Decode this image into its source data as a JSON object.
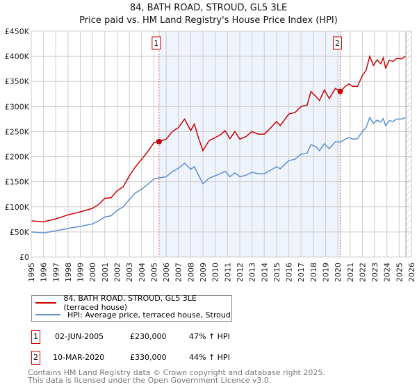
{
  "title": "84, BATH ROAD, STROUD, GL5 3LE",
  "subtitle": "Price paid vs. HM Land Registry's House Price Index (HPI)",
  "chart_data": {
    "type": "line",
    "title": "84, BATH ROAD, STROUD, GL5 3LE",
    "subtitle": "Price paid vs. HM Land Registry's House Price Index (HPI)",
    "xlim": [
      1995,
      2026
    ],
    "ylim": [
      0,
      450000
    ],
    "grid": true,
    "x_ticks": [
      "1995",
      "1996",
      "1997",
      "1998",
      "1999",
      "2000",
      "2001",
      "2002",
      "2003",
      "2004",
      "2005",
      "2006",
      "2007",
      "2008",
      "2009",
      "2010",
      "2011",
      "2012",
      "2013",
      "2014",
      "2015",
      "2016",
      "2017",
      "2018",
      "2019",
      "2020",
      "2021",
      "2022",
      "2023",
      "2024",
      "2025",
      "2026"
    ],
    "y_ticks": [
      {
        "v": 0,
        "label": "£0"
      },
      {
        "v": 50000,
        "label": "£50K"
      },
      {
        "v": 100000,
        "label": "£100K"
      },
      {
        "v": 150000,
        "label": "£150K"
      },
      {
        "v": 200000,
        "label": "£200K"
      },
      {
        "v": 250000,
        "label": "£250K"
      },
      {
        "v": 300000,
        "label": "£300K"
      },
      {
        "v": 350000,
        "label": "£350K"
      },
      {
        "v": 400000,
        "label": "£400K"
      },
      {
        "v": 450000,
        "label": "£450K"
      }
    ],
    "x": [
      1995,
      1996,
      1997,
      1998,
      1999,
      2000,
      2000.5,
      2001,
      2001.5,
      2002,
      2002.5,
      2003,
      2003.5,
      2004,
      2004.5,
      2005,
      2005.5,
      2006,
      2006.5,
      2007,
      2007.5,
      2008,
      2008.3,
      2008.6,
      2009,
      2009.5,
      2010,
      2010.5,
      2010.8,
      2011.2,
      2011.6,
      2012,
      2012.5,
      2013,
      2013.5,
      2014,
      2014.5,
      2015,
      2015.3,
      2016,
      2016.5,
      2017,
      2017.5,
      2017.8,
      2018.2,
      2018.5,
      2018.9,
      2019.3,
      2019.8,
      2020.2,
      2020.6,
      2020.9,
      2021.2,
      2021.6,
      2022,
      2022.3,
      2022.6,
      2022.9,
      2023.2,
      2023.5,
      2023.7,
      2023.9,
      2024.2,
      2024.5,
      2024.8,
      2025.2,
      2025.5
    ],
    "series": [
      {
        "name": "84, BATH ROAD, STROUD, GL5 3LE (terraced house)",
        "color": "#cc0000",
        "values": [
          72,
          70,
          76,
          84,
          90,
          97,
          105,
          117,
          118,
          132,
          140,
          162,
          180,
          195,
          210,
          228,
          231,
          235,
          250,
          258,
          275,
          252,
          265,
          240,
          212,
          232,
          238,
          245,
          252,
          236,
          250,
          235,
          240,
          250,
          245,
          245,
          257,
          270,
          262,
          285,
          288,
          300,
          303,
          330,
          320,
          312,
          333,
          316,
          336,
          330,
          340,
          345,
          340,
          340,
          362,
          372,
          400,
          382,
          393,
          385,
          397,
          377,
          392,
          390,
          396,
          395,
          400
        ]
      },
      {
        "name": "HPI: Average price, terraced house, Stroud",
        "color": "#5b8fd0",
        "values": [
          50,
          48,
          52,
          57,
          61,
          66,
          72,
          80,
          82,
          93,
          100,
          115,
          128,
          135,
          145,
          156,
          158,
          160,
          170,
          177,
          187,
          175,
          180,
          165,
          146,
          157,
          162,
          167,
          171,
          160,
          168,
          160,
          163,
          169,
          166,
          166,
          173,
          180,
          176,
          192,
          195,
          205,
          207,
          224,
          220,
          212,
          226,
          216,
          230,
          229,
          235,
          238,
          235,
          236,
          250,
          258,
          278,
          266,
          273,
          269,
          276,
          262,
          272,
          270,
          275,
          275,
          278
        ]
      }
    ],
    "value_unit": "thousand GBP",
    "shaded_range": [
      2005.42,
      2020.19
    ],
    "forecast_hatch_from": 2025.55,
    "sales": [
      {
        "label": "1",
        "x": 2005.42,
        "value": 230000,
        "date": "02-JUN-2005",
        "price": "£230,000",
        "hpi": "47% ↑ HPI"
      },
      {
        "label": "2",
        "x": 2020.19,
        "value": 330000,
        "date": "10-MAR-2020",
        "price": "£330,000",
        "hpi": "44% ↑ HPI"
      }
    ]
  },
  "legend": {
    "red": "84, BATH ROAD, STROUD, GL5 3LE (terraced house)",
    "blue": "HPI: Average price, terraced house, Stroud"
  },
  "footer": {
    "line1": "Contains HM Land Registry data © Crown copyright and database right 2025.",
    "line2": "This data is licensed under the Open Government Licence v3.0."
  }
}
